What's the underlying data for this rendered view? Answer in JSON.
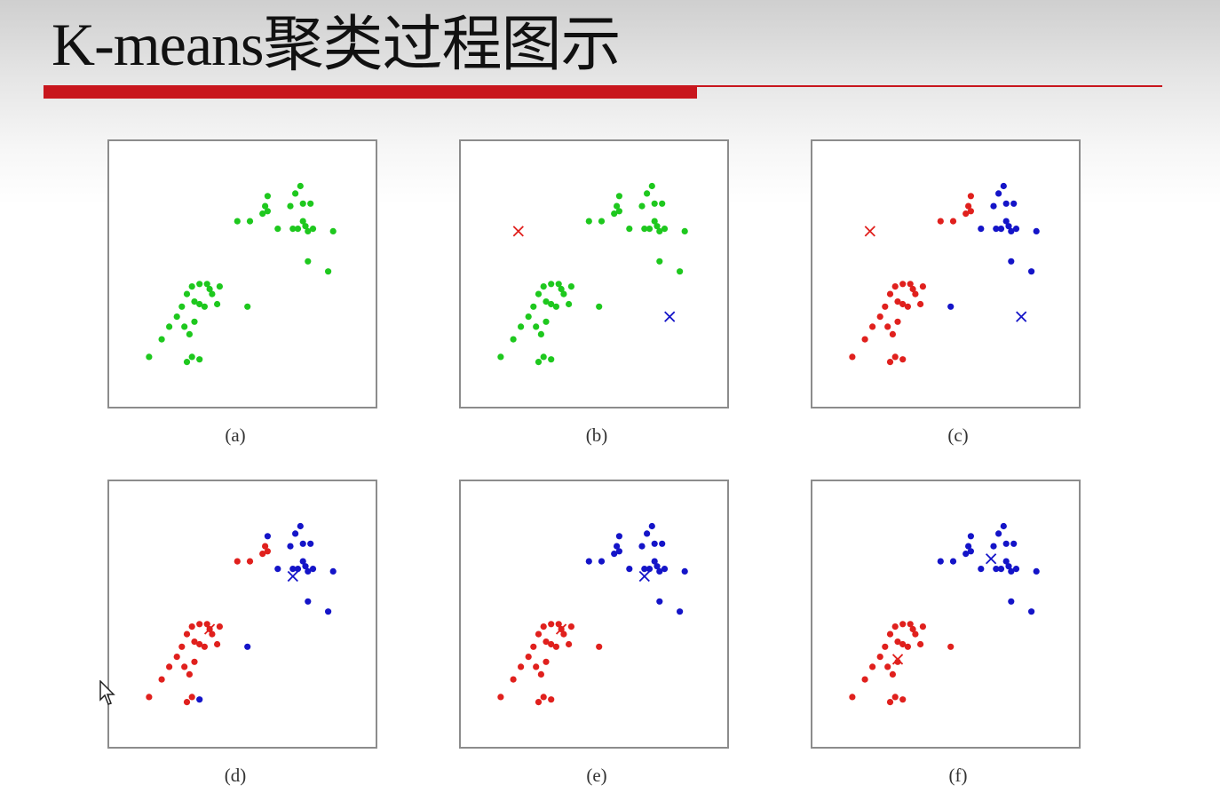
{
  "slide": {
    "caption_strip": "",
    "title": "K-means聚类过程图示"
  },
  "colors": {
    "title_rule": "#c8161d",
    "unassigned_point": "#1ec81e",
    "cluster_red": "#e0201d",
    "cluster_blue": "#1414c8",
    "panel_border": "#8c8c8c"
  },
  "chart_data": [
    {
      "type": "scatter",
      "panel_label": "(a)",
      "state": "initial data, unlabeled",
      "centroids": []
    },
    {
      "type": "scatter",
      "panel_label": "(b)",
      "state": "random initial centroids",
      "centroids": [
        {
          "cluster": "red",
          "x": 0.2,
          "y": 0.67
        },
        {
          "cluster": "blue",
          "x": 0.8,
          "y": 0.33
        }
      ]
    },
    {
      "type": "scatter",
      "panel_label": "(c)",
      "state": "first assignment",
      "centroids": [
        {
          "cluster": "red",
          "x": 0.2,
          "y": 0.67
        },
        {
          "cluster": "blue",
          "x": 0.8,
          "y": 0.33
        }
      ]
    },
    {
      "type": "scatter",
      "panel_label": "(d)",
      "state": "centroids updated",
      "centroids": [
        {
          "cluster": "red",
          "x": 0.37,
          "y": 0.44
        },
        {
          "cluster": "blue",
          "x": 0.7,
          "y": 0.65
        }
      ]
    },
    {
      "type": "scatter",
      "panel_label": "(e)",
      "state": "second assignment",
      "centroids": [
        {
          "cluster": "red",
          "x": 0.37,
          "y": 0.44
        },
        {
          "cluster": "blue",
          "x": 0.7,
          "y": 0.65
        }
      ]
    },
    {
      "type": "scatter",
      "panel_label": "(f)",
      "state": "converged",
      "centroids": [
        {
          "cluster": "red",
          "x": 0.31,
          "y": 0.32
        },
        {
          "cluster": "blue",
          "x": 0.68,
          "y": 0.72
        }
      ]
    }
  ],
  "points": {
    "description_order": "lower-left group then upper-right group",
    "lower_left": [
      [
        0.13,
        0.17
      ],
      [
        0.18,
        0.24
      ],
      [
        0.21,
        0.29
      ],
      [
        0.24,
        0.33
      ],
      [
        0.26,
        0.37
      ],
      [
        0.28,
        0.42
      ],
      [
        0.3,
        0.45
      ],
      [
        0.33,
        0.46
      ],
      [
        0.36,
        0.46
      ],
      [
        0.37,
        0.44
      ],
      [
        0.38,
        0.42
      ],
      [
        0.41,
        0.45
      ],
      [
        0.4,
        0.38
      ],
      [
        0.35,
        0.37
      ],
      [
        0.31,
        0.39
      ],
      [
        0.27,
        0.29
      ],
      [
        0.29,
        0.26
      ],
      [
        0.31,
        0.31
      ],
      [
        0.33,
        0.38
      ],
      [
        0.28,
        0.15
      ],
      [
        0.3,
        0.17
      ],
      [
        0.33,
        0.16
      ],
      [
        0.52,
        0.37
      ]
    ],
    "upper_right": [
      [
        0.48,
        0.71
      ],
      [
        0.53,
        0.71
      ],
      [
        0.58,
        0.74
      ],
      [
        0.59,
        0.77
      ],
      [
        0.6,
        0.75
      ],
      [
        0.6,
        0.81
      ],
      [
        0.64,
        0.68
      ],
      [
        0.69,
        0.77
      ],
      [
        0.7,
        0.68
      ],
      [
        0.71,
        0.82
      ],
      [
        0.72,
        0.68
      ],
      [
        0.73,
        0.85
      ],
      [
        0.74,
        0.78
      ],
      [
        0.74,
        0.71
      ],
      [
        0.75,
        0.69
      ],
      [
        0.76,
        0.67
      ],
      [
        0.77,
        0.78
      ],
      [
        0.78,
        0.68
      ],
      [
        0.86,
        0.67
      ],
      [
        0.76,
        0.55
      ],
      [
        0.84,
        0.51
      ]
    ],
    "assignment_c_blue_lower_left": [
      22
    ],
    "assignment_c_red_upper_right": [
      0,
      1,
      2,
      3,
      4,
      5
    ],
    "assignment_d_blue_lower_left": [
      22
    ],
    "assignment_d_red_upper_right": [
      0,
      1,
      2,
      3,
      4,
      5
    ],
    "special_blue_lower_left_index_c": [
      21
    ]
  },
  "panels": [
    {
      "label": "(a)"
    },
    {
      "label": "(b)"
    },
    {
      "label": "(c)"
    },
    {
      "label": "(d)"
    },
    {
      "label": "(e)"
    },
    {
      "label": "(f)"
    }
  ]
}
